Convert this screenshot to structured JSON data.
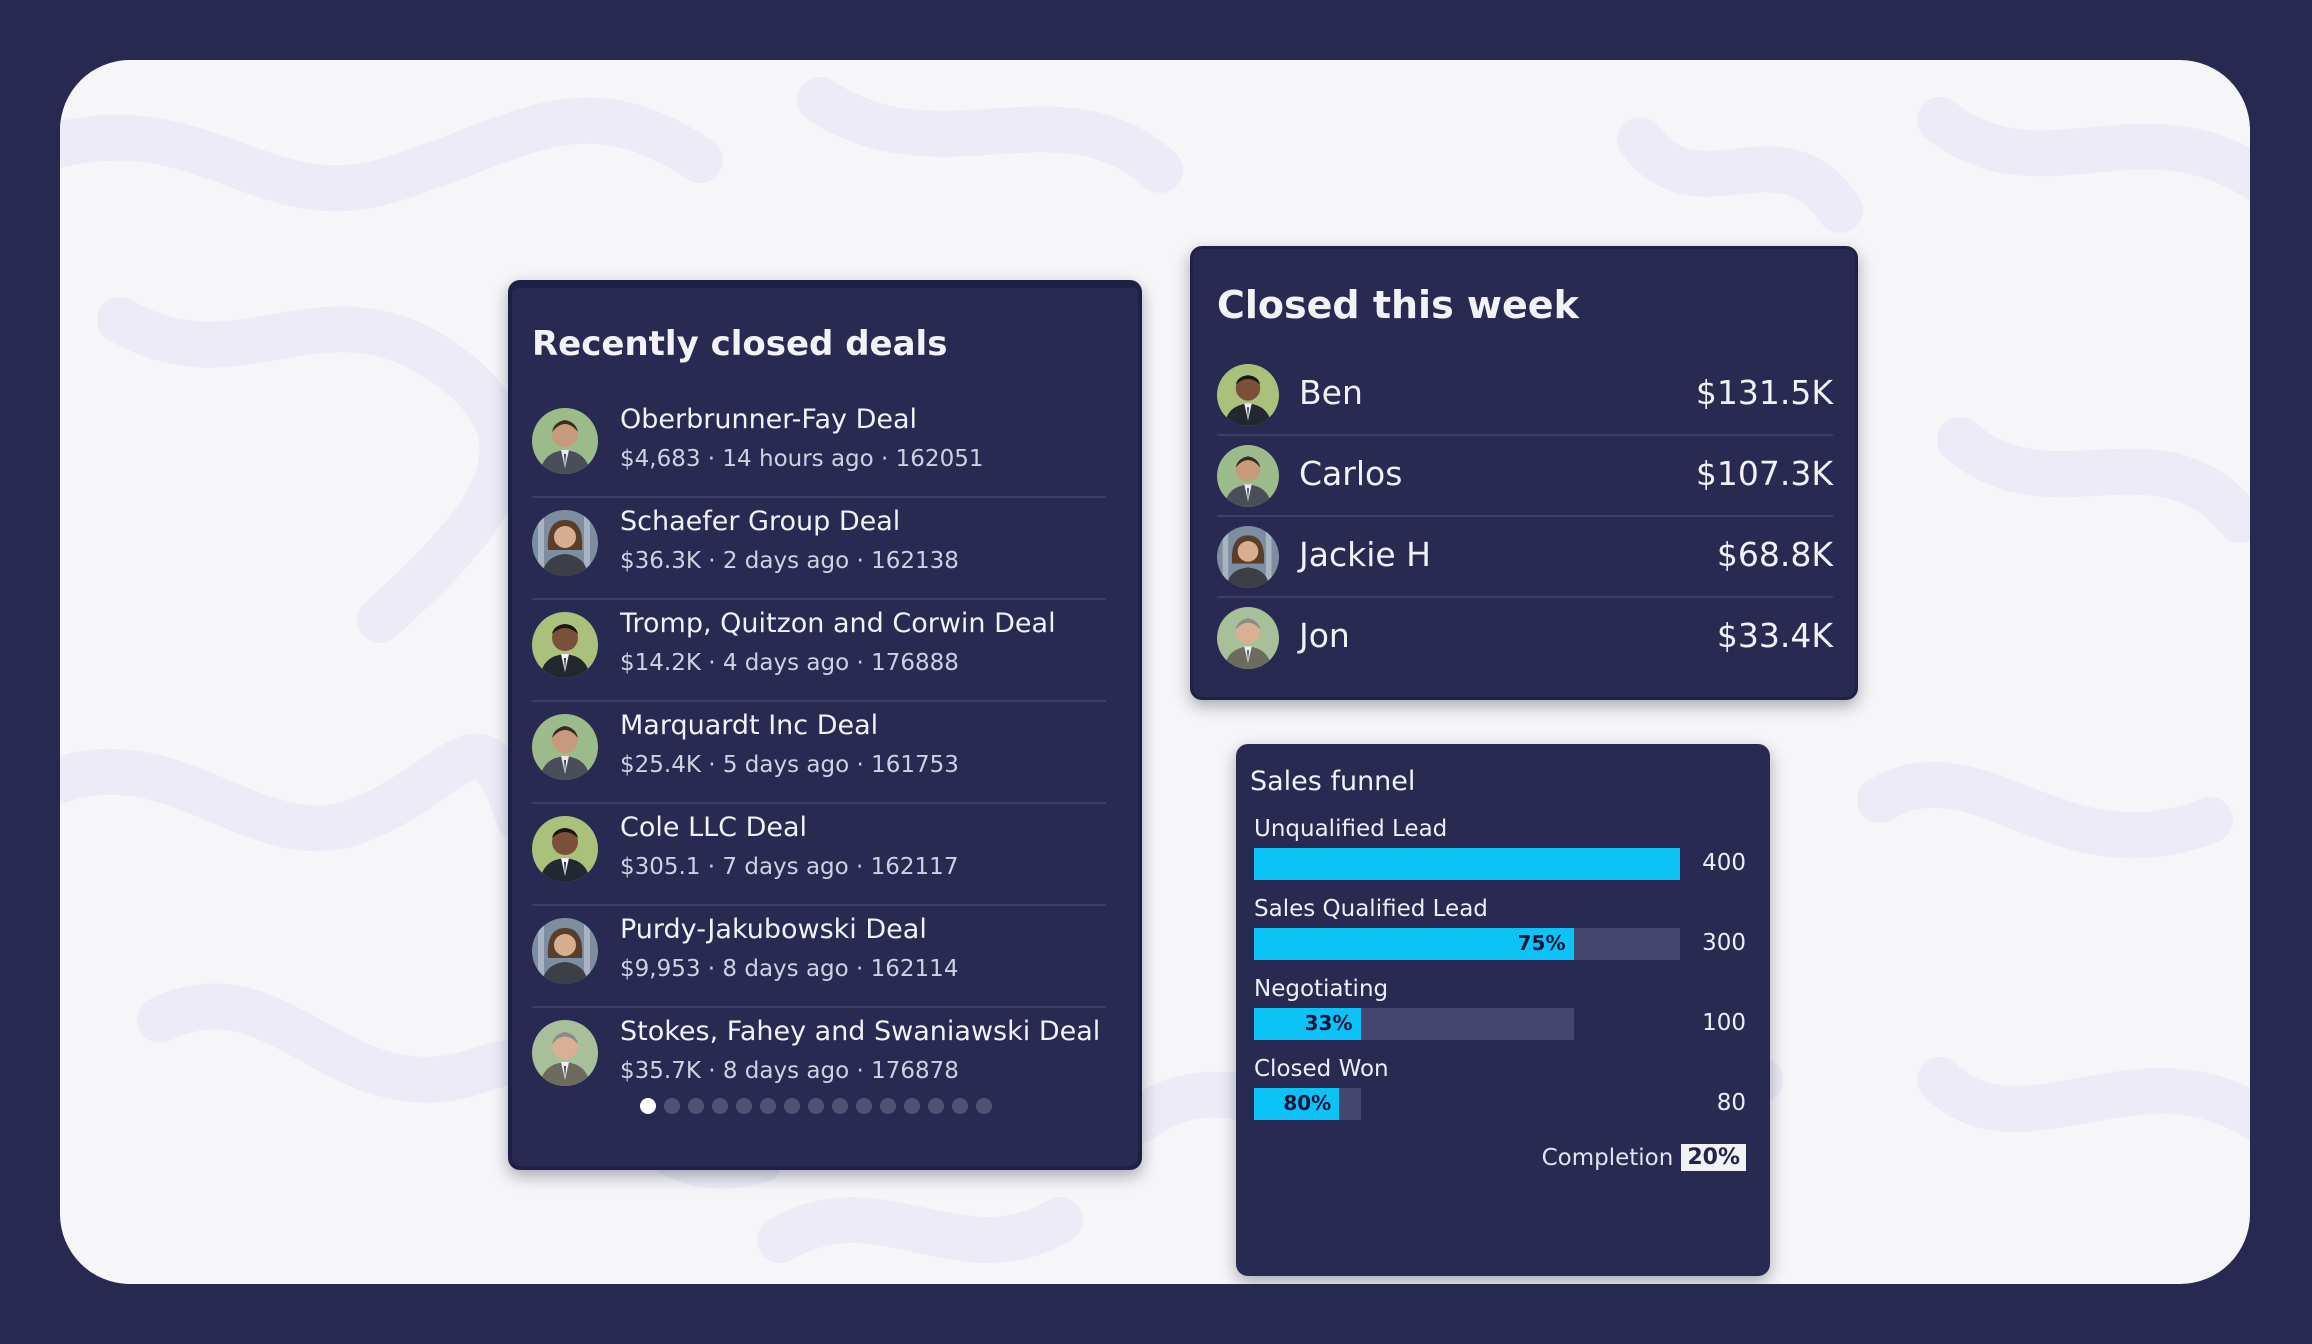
{
  "colors": {
    "page_frame": "#282950",
    "canvas": "#f6f6f8",
    "card": "#282a52",
    "accent_bar": "#0bc3f7",
    "track": "#444670"
  },
  "recent_deals": {
    "title": "Recently closed deals",
    "items": [
      {
        "name": "Oberbrunner-Fay Deal",
        "meta": "$4,683 · 14 hours ago · 162051",
        "avatar": "man-avatar-icon"
      },
      {
        "name": "Schaefer Group Deal",
        "meta": "$36.3K · 2 days ago · 162138",
        "avatar": "woman-avatar-icon"
      },
      {
        "name": "Tromp, Quitzon and Corwin Deal",
        "meta": "$14.2K · 4 days ago · 176888",
        "avatar": "man-avatar-icon"
      },
      {
        "name": "Marquardt Inc Deal",
        "meta": "$25.4K · 5 days ago · 161753",
        "avatar": "man-avatar-icon"
      },
      {
        "name": "Cole LLC Deal",
        "meta": "$305.1 · 7 days ago · 162117",
        "avatar": "man-avatar-icon"
      },
      {
        "name": "Purdy-Jakubowski Deal",
        "meta": "$9,953 · 8 days ago · 162114",
        "avatar": "woman-avatar-icon"
      },
      {
        "name": "Stokes, Fahey and Swaniawski Deal",
        "meta": "$35.7K · 8 days ago · 176878",
        "avatar": "man-avatar-icon"
      }
    ],
    "page_count": 15,
    "active_page": 1
  },
  "closed_week": {
    "title": "Closed this week",
    "reps": [
      {
        "name": "Ben",
        "amount": "$131.5K"
      },
      {
        "name": "Carlos",
        "amount": "$107.3K"
      },
      {
        "name": "Jackie H",
        "amount": "$68.8K"
      },
      {
        "name": "Jon",
        "amount": "$33.4K"
      }
    ]
  },
  "funnel": {
    "title": "Sales funnel",
    "stages": [
      {
        "label": "Unqualified Lead",
        "count": "400",
        "value": 400,
        "pct_label": ""
      },
      {
        "label": "Sales Qualified Lead",
        "count": "300",
        "value": 300,
        "pct_label": "75%"
      },
      {
        "label": "Negotiating",
        "count": "100",
        "value": 100,
        "pct_label": "33%"
      },
      {
        "label": "Closed Won",
        "count": "80",
        "value": 80,
        "pct_label": "80%"
      }
    ],
    "completion_label": "Completion",
    "completion_value": "20%"
  }
}
